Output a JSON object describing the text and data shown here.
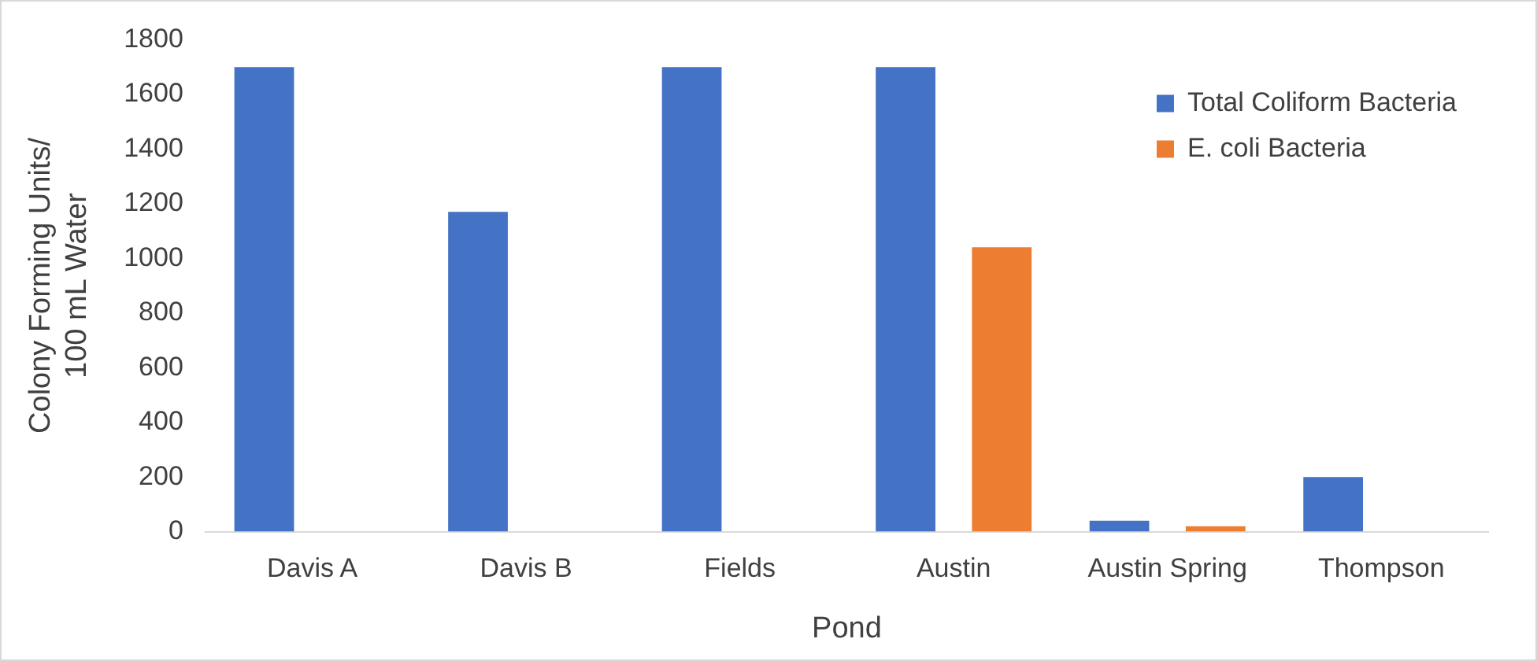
{
  "chart_data": {
    "type": "bar",
    "xlabel": "Pond",
    "ylabel": "Colony Forming Units/ 100 mL Water",
    "categories": [
      "Davis A",
      "Davis B",
      "Fields",
      "Austin",
      "Austin Spring",
      "Thompson"
    ],
    "series": [
      {
        "name": "Total Coliform Bacteria",
        "color": "#4472c4",
        "values": [
          1700,
          1170,
          1700,
          1700,
          40,
          200
        ]
      },
      {
        "name": "E. coli Bacteria",
        "color": "#ed7d31",
        "values": [
          0,
          0,
          0,
          1040,
          20,
          0
        ]
      }
    ],
    "ylim": [
      0,
      1800
    ],
    "yticks": [
      0,
      200,
      400,
      600,
      800,
      1000,
      1200,
      1400,
      1600,
      1800
    ],
    "grid": false,
    "legend": "top right"
  }
}
